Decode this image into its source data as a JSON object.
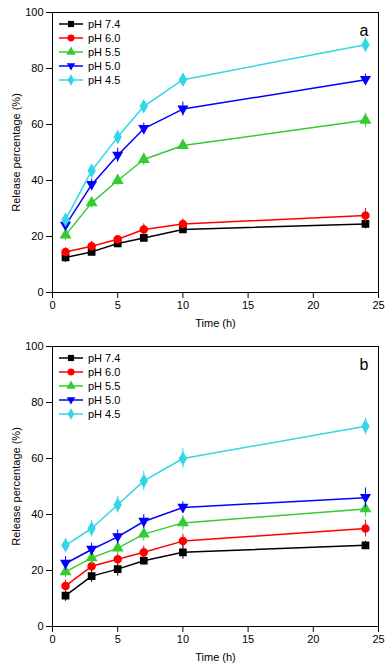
{
  "chart_data": [
    {
      "type": "line",
      "annotations": [
        "a"
      ],
      "x_label": "Time (h)",
      "y_label": "Release percentage (%)",
      "x": [
        1,
        3,
        5,
        7,
        10,
        24
      ],
      "xlim": [
        0,
        25
      ],
      "xticks": [
        0,
        5,
        10,
        15,
        20,
        25
      ],
      "ylim": [
        0,
        100
      ],
      "yticks": [
        0,
        20,
        40,
        60,
        80,
        100
      ],
      "legend": "top-left",
      "series": [
        {
          "name": "pH 7.4",
          "color": "#000000",
          "marker": "square",
          "values": [
            12.5,
            14.5,
            17.5,
            19.5,
            22.5,
            24.5
          ],
          "errors": [
            1.8,
            1.2,
            1.5,
            1.0,
            1.2,
            1.8
          ]
        },
        {
          "name": "pH 6.0",
          "color": "#ff0000",
          "marker": "circle",
          "values": [
            14.5,
            16.5,
            19,
            22.5,
            24.5,
            27.5
          ],
          "errors": [
            1.5,
            1.8,
            1.2,
            2.0,
            1.8,
            2.5
          ]
        },
        {
          "name": "pH 5.5",
          "color": "#33cc33",
          "marker": "triangle",
          "values": [
            20.5,
            32,
            40,
            47.5,
            52.5,
            61.5
          ],
          "errors": [
            2.0,
            1.8,
            1.8,
            2.2,
            1.0,
            2.5
          ]
        },
        {
          "name": "pH 5.0",
          "color": "#0000ff",
          "marker": "triangle-down",
          "values": [
            24,
            38.5,
            49,
            58.5,
            65.5,
            76
          ],
          "errors": [
            1.5,
            2.0,
            2.5,
            2.0,
            2.5,
            2.0
          ]
        },
        {
          "name": "pH 4.5",
          "color": "#33d6e6",
          "marker": "diamond",
          "values": [
            26,
            43.5,
            55.5,
            66.5,
            76,
            88.5
          ],
          "errors": [
            1.8,
            2.0,
            1.8,
            2.0,
            2.2,
            2.5
          ]
        }
      ]
    },
    {
      "type": "line",
      "annotations": [
        "b"
      ],
      "x_label": "Time (h)",
      "y_label": "Release percentage (%)",
      "x": [
        1,
        3,
        5,
        7,
        10,
        24
      ],
      "xlim": [
        0,
        25
      ],
      "xticks": [
        0,
        5,
        10,
        15,
        20,
        25
      ],
      "ylim": [
        0,
        100
      ],
      "yticks": [
        0,
        20,
        40,
        60,
        80,
        100
      ],
      "legend": "top-left",
      "series": [
        {
          "name": "pH 7.4",
          "color": "#000000",
          "marker": "square",
          "values": [
            11,
            18,
            20.5,
            23.5,
            26.5,
            29
          ],
          "errors": [
            2.0,
            2.2,
            2.5,
            1.5,
            2.5,
            1.5
          ]
        },
        {
          "name": "pH 6.0",
          "color": "#ff0000",
          "marker": "circle",
          "values": [
            14.5,
            21.5,
            24,
            26.5,
            30.5,
            35
          ],
          "errors": [
            2.0,
            2.0,
            2.0,
            2.2,
            2.5,
            3.0
          ]
        },
        {
          "name": "pH 5.5",
          "color": "#33cc33",
          "marker": "triangle",
          "values": [
            19.5,
            24.5,
            28,
            33,
            37,
            42
          ],
          "errors": [
            2.0,
            2.2,
            2.0,
            2.5,
            2.5,
            3.0
          ]
        },
        {
          "name": "pH 5.0",
          "color": "#0000ff",
          "marker": "triangle-down",
          "values": [
            22.5,
            27.5,
            32,
            37.5,
            42.5,
            46
          ],
          "errors": [
            2.5,
            2.2,
            2.5,
            2.5,
            2.0,
            3.5
          ]
        },
        {
          "name": "pH 4.5",
          "color": "#33d6e6",
          "marker": "diamond",
          "values": [
            29,
            35,
            43.5,
            52,
            60,
            71.5
          ],
          "errors": [
            2.5,
            3.0,
            3.0,
            3.5,
            3.5,
            3.0
          ]
        }
      ]
    }
  ]
}
